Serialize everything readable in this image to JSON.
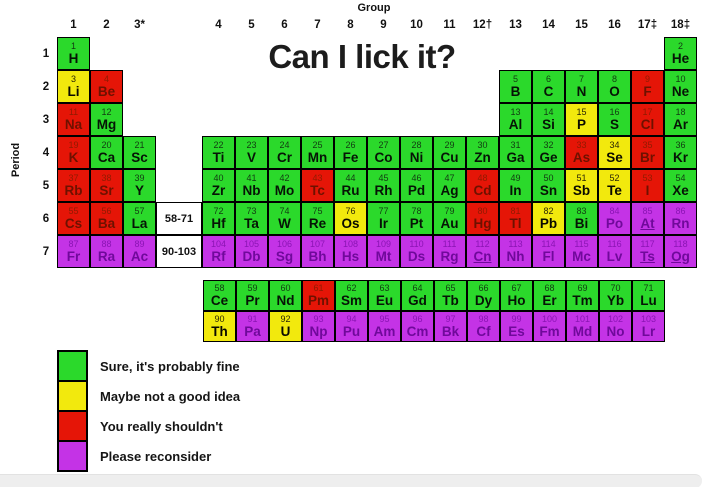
{
  "title": "Can I lick it?",
  "axis": {
    "group_label": "Group",
    "period_label": "Period",
    "group_numbers": [
      "1",
      "2",
      "3*",
      "4",
      "5",
      "6",
      "7",
      "8",
      "9",
      "10",
      "11",
      "12†",
      "13",
      "14",
      "15",
      "16",
      "17‡",
      "18‡"
    ],
    "period_numbers": [
      "1",
      "2",
      "3",
      "4",
      "5",
      "6",
      "7"
    ]
  },
  "palette": {
    "G": {
      "bg": "#2bd92b",
      "num": "#123a12",
      "sym": "#061406"
    },
    "Y": {
      "bg": "#f2e90d",
      "num": "#2a2606",
      "sym": "#0a0a00"
    },
    "R": {
      "bg": "#e51507",
      "num": "#8f1b02",
      "sym": "#6e1100"
    },
    "P": {
      "bg": "#c433e6",
      "num": "#8a14b4",
      "sym": "#70099b"
    }
  },
  "legend": [
    {
      "color": "G",
      "label": "Sure, it's probably fine"
    },
    {
      "color": "Y",
      "label": "Maybe not a good idea"
    },
    {
      "color": "R",
      "label": "You really shouldn't"
    },
    {
      "color": "P",
      "label": "Please reconsider"
    }
  ],
  "range_boxes": [
    {
      "label": "58-71",
      "p": 6
    },
    {
      "label": "90-103",
      "p": 7
    }
  ],
  "elements": [
    {
      "n": 1,
      "s": "H",
      "g": 1,
      "p": 1,
      "c": "G"
    },
    {
      "n": 2,
      "s": "He",
      "g": 18,
      "p": 1,
      "c": "G"
    },
    {
      "n": 3,
      "s": "Li",
      "g": 1,
      "p": 2,
      "c": "Y"
    },
    {
      "n": 4,
      "s": "Be",
      "g": 2,
      "p": 2,
      "c": "R"
    },
    {
      "n": 5,
      "s": "B",
      "g": 13,
      "p": 2,
      "c": "G"
    },
    {
      "n": 6,
      "s": "C",
      "g": 14,
      "p": 2,
      "c": "G"
    },
    {
      "n": 7,
      "s": "N",
      "g": 15,
      "p": 2,
      "c": "G"
    },
    {
      "n": 8,
      "s": "O",
      "g": 16,
      "p": 2,
      "c": "G"
    },
    {
      "n": 9,
      "s": "F",
      "g": 17,
      "p": 2,
      "c": "R"
    },
    {
      "n": 10,
      "s": "Ne",
      "g": 18,
      "p": 2,
      "c": "G"
    },
    {
      "n": 11,
      "s": "Na",
      "g": 1,
      "p": 3,
      "c": "R"
    },
    {
      "n": 12,
      "s": "Mg",
      "g": 2,
      "p": 3,
      "c": "G"
    },
    {
      "n": 13,
      "s": "Al",
      "g": 13,
      "p": 3,
      "c": "G"
    },
    {
      "n": 14,
      "s": "Si",
      "g": 14,
      "p": 3,
      "c": "G"
    },
    {
      "n": 15,
      "s": "P",
      "g": 15,
      "p": 3,
      "c": "Y"
    },
    {
      "n": 16,
      "s": "S",
      "g": 16,
      "p": 3,
      "c": "G"
    },
    {
      "n": 17,
      "s": "Cl",
      "g": 17,
      "p": 3,
      "c": "R"
    },
    {
      "n": 18,
      "s": "Ar",
      "g": 18,
      "p": 3,
      "c": "G"
    },
    {
      "n": 19,
      "s": "K",
      "g": 1,
      "p": 4,
      "c": "R"
    },
    {
      "n": 20,
      "s": "Ca",
      "g": 2,
      "p": 4,
      "c": "G"
    },
    {
      "n": 21,
      "s": "Sc",
      "g": 3,
      "p": 4,
      "c": "G"
    },
    {
      "n": 22,
      "s": "Ti",
      "g": 4,
      "p": 4,
      "c": "G"
    },
    {
      "n": 23,
      "s": "V",
      "g": 5,
      "p": 4,
      "c": "G"
    },
    {
      "n": 24,
      "s": "Cr",
      "g": 6,
      "p": 4,
      "c": "G"
    },
    {
      "n": 25,
      "s": "Mn",
      "g": 7,
      "p": 4,
      "c": "G"
    },
    {
      "n": 26,
      "s": "Fe",
      "g": 8,
      "p": 4,
      "c": "G"
    },
    {
      "n": 27,
      "s": "Co",
      "g": 9,
      "p": 4,
      "c": "G"
    },
    {
      "n": 28,
      "s": "Ni",
      "g": 10,
      "p": 4,
      "c": "G"
    },
    {
      "n": 29,
      "s": "Cu",
      "g": 11,
      "p": 4,
      "c": "G"
    },
    {
      "n": 30,
      "s": "Zn",
      "g": 12,
      "p": 4,
      "c": "G"
    },
    {
      "n": 31,
      "s": "Ga",
      "g": 13,
      "p": 4,
      "c": "G"
    },
    {
      "n": 32,
      "s": "Ge",
      "g": 14,
      "p": 4,
      "c": "G"
    },
    {
      "n": 33,
      "s": "As",
      "g": 15,
      "p": 4,
      "c": "R"
    },
    {
      "n": 34,
      "s": "Se",
      "g": 16,
      "p": 4,
      "c": "Y"
    },
    {
      "n": 35,
      "s": "Br",
      "g": 17,
      "p": 4,
      "c": "R"
    },
    {
      "n": 36,
      "s": "Kr",
      "g": 18,
      "p": 4,
      "c": "G"
    },
    {
      "n": 37,
      "s": "Rb",
      "g": 1,
      "p": 5,
      "c": "R"
    },
    {
      "n": 38,
      "s": "Sr",
      "g": 2,
      "p": 5,
      "c": "R"
    },
    {
      "n": 39,
      "s": "Y",
      "g": 3,
      "p": 5,
      "c": "G"
    },
    {
      "n": 40,
      "s": "Zr",
      "g": 4,
      "p": 5,
      "c": "G"
    },
    {
      "n": 41,
      "s": "Nb",
      "g": 5,
      "p": 5,
      "c": "G"
    },
    {
      "n": 42,
      "s": "Mo",
      "g": 6,
      "p": 5,
      "c": "G"
    },
    {
      "n": 43,
      "s": "Tc",
      "g": 7,
      "p": 5,
      "c": "R"
    },
    {
      "n": 44,
      "s": "Ru",
      "g": 8,
      "p": 5,
      "c": "G"
    },
    {
      "n": 45,
      "s": "Rh",
      "g": 9,
      "p": 5,
      "c": "G"
    },
    {
      "n": 46,
      "s": "Pd",
      "g": 10,
      "p": 5,
      "c": "G"
    },
    {
      "n": 47,
      "s": "Ag",
      "g": 11,
      "p": 5,
      "c": "G"
    },
    {
      "n": 48,
      "s": "Cd",
      "g": 12,
      "p": 5,
      "c": "R"
    },
    {
      "n": 49,
      "s": "In",
      "g": 13,
      "p": 5,
      "c": "G"
    },
    {
      "n": 50,
      "s": "Sn",
      "g": 14,
      "p": 5,
      "c": "G"
    },
    {
      "n": 51,
      "s": "Sb",
      "g": 15,
      "p": 5,
      "c": "Y"
    },
    {
      "n": 52,
      "s": "Te",
      "g": 16,
      "p": 5,
      "c": "Y"
    },
    {
      "n": 53,
      "s": "I",
      "g": 17,
      "p": 5,
      "c": "R"
    },
    {
      "n": 54,
      "s": "Xe",
      "g": 18,
      "p": 5,
      "c": "G"
    },
    {
      "n": 55,
      "s": "Cs",
      "g": 1,
      "p": 6,
      "c": "R"
    },
    {
      "n": 56,
      "s": "Ba",
      "g": 2,
      "p": 6,
      "c": "R"
    },
    {
      "n": 57,
      "s": "La",
      "g": 3,
      "p": 6,
      "c": "G"
    },
    {
      "n": 72,
      "s": "Hf",
      "g": 4,
      "p": 6,
      "c": "G"
    },
    {
      "n": 73,
      "s": "Ta",
      "g": 5,
      "p": 6,
      "c": "G"
    },
    {
      "n": 74,
      "s": "W",
      "g": 6,
      "p": 6,
      "c": "G"
    },
    {
      "n": 75,
      "s": "Re",
      "g": 7,
      "p": 6,
      "c": "G"
    },
    {
      "n": 76,
      "s": "Os",
      "g": 8,
      "p": 6,
      "c": "Y"
    },
    {
      "n": 77,
      "s": "Ir",
      "g": 9,
      "p": 6,
      "c": "G"
    },
    {
      "n": 78,
      "s": "Pt",
      "g": 10,
      "p": 6,
      "c": "G"
    },
    {
      "n": 79,
      "s": "Au",
      "g": 11,
      "p": 6,
      "c": "G"
    },
    {
      "n": 80,
      "s": "Hg",
      "g": 12,
      "p": 6,
      "c": "R"
    },
    {
      "n": 81,
      "s": "Tl",
      "g": 13,
      "p": 6,
      "c": "R"
    },
    {
      "n": 82,
      "s": "Pb",
      "g": 14,
      "p": 6,
      "c": "Y"
    },
    {
      "n": 83,
      "s": "Bi",
      "g": 15,
      "p": 6,
      "c": "G"
    },
    {
      "n": 84,
      "s": "Po",
      "g": 16,
      "p": 6,
      "c": "P"
    },
    {
      "n": 85,
      "s": "At",
      "g": 17,
      "p": 6,
      "c": "P",
      "u": true
    },
    {
      "n": 86,
      "s": "Rn",
      "g": 18,
      "p": 6,
      "c": "P"
    },
    {
      "n": 87,
      "s": "Fr",
      "g": 1,
      "p": 7,
      "c": "P"
    },
    {
      "n": 88,
      "s": "Ra",
      "g": 2,
      "p": 7,
      "c": "P"
    },
    {
      "n": 89,
      "s": "Ac",
      "g": 3,
      "p": 7,
      "c": "P"
    },
    {
      "n": 104,
      "s": "Rf",
      "g": 4,
      "p": 7,
      "c": "P"
    },
    {
      "n": 105,
      "s": "Db",
      "g": 5,
      "p": 7,
      "c": "P"
    },
    {
      "n": 106,
      "s": "Sg",
      "g": 6,
      "p": 7,
      "c": "P"
    },
    {
      "n": 107,
      "s": "Bh",
      "g": 7,
      "p": 7,
      "c": "P"
    },
    {
      "n": 108,
      "s": "Hs",
      "g": 8,
      "p": 7,
      "c": "P"
    },
    {
      "n": 109,
      "s": "Mt",
      "g": 9,
      "p": 7,
      "c": "P"
    },
    {
      "n": 110,
      "s": "Ds",
      "g": 10,
      "p": 7,
      "c": "P"
    },
    {
      "n": 111,
      "s": "Rg",
      "g": 11,
      "p": 7,
      "c": "P"
    },
    {
      "n": 112,
      "s": "Cn",
      "g": 12,
      "p": 7,
      "c": "P",
      "u": true
    },
    {
      "n": 113,
      "s": "Nh",
      "g": 13,
      "p": 7,
      "c": "P"
    },
    {
      "n": 114,
      "s": "Fl",
      "g": 14,
      "p": 7,
      "c": "P"
    },
    {
      "n": 115,
      "s": "Mc",
      "g": 15,
      "p": 7,
      "c": "P"
    },
    {
      "n": 116,
      "s": "Lv",
      "g": 16,
      "p": 7,
      "c": "P"
    },
    {
      "n": 117,
      "s": "Ts",
      "g": 17,
      "p": 7,
      "c": "P",
      "u": true
    },
    {
      "n": 118,
      "s": "Og",
      "g": 18,
      "p": 7,
      "c": "P",
      "u": true
    }
  ],
  "f_block": [
    [
      {
        "n": 58,
        "s": "Ce",
        "c": "G"
      },
      {
        "n": 59,
        "s": "Pr",
        "c": "G"
      },
      {
        "n": 60,
        "s": "Nd",
        "c": "G"
      },
      {
        "n": 61,
        "s": "Pm",
        "c": "R"
      },
      {
        "n": 62,
        "s": "Sm",
        "c": "G"
      },
      {
        "n": 63,
        "s": "Eu",
        "c": "G"
      },
      {
        "n": 64,
        "s": "Gd",
        "c": "G"
      },
      {
        "n": 65,
        "s": "Tb",
        "c": "G"
      },
      {
        "n": 66,
        "s": "Dy",
        "c": "G"
      },
      {
        "n": 67,
        "s": "Ho",
        "c": "G"
      },
      {
        "n": 68,
        "s": "Er",
        "c": "G"
      },
      {
        "n": 69,
        "s": "Tm",
        "c": "G"
      },
      {
        "n": 70,
        "s": "Yb",
        "c": "G"
      },
      {
        "n": 71,
        "s": "Lu",
        "c": "G"
      }
    ],
    [
      {
        "n": 90,
        "s": "Th",
        "c": "Y"
      },
      {
        "n": 91,
        "s": "Pa",
        "c": "P"
      },
      {
        "n": 92,
        "s": "U",
        "c": "Y"
      },
      {
        "n": 93,
        "s": "Np",
        "c": "P"
      },
      {
        "n": 94,
        "s": "Pu",
        "c": "P"
      },
      {
        "n": 95,
        "s": "Am",
        "c": "P"
      },
      {
        "n": 96,
        "s": "Cm",
        "c": "P"
      },
      {
        "n": 97,
        "s": "Bk",
        "c": "P"
      },
      {
        "n": 98,
        "s": "Cf",
        "c": "P"
      },
      {
        "n": 99,
        "s": "Es",
        "c": "P"
      },
      {
        "n": 100,
        "s": "Fm",
        "c": "P"
      },
      {
        "n": 101,
        "s": "Md",
        "c": "P"
      },
      {
        "n": 102,
        "s": "No",
        "c": "P"
      },
      {
        "n": 103,
        "s": "Lr",
        "c": "P"
      }
    ]
  ]
}
